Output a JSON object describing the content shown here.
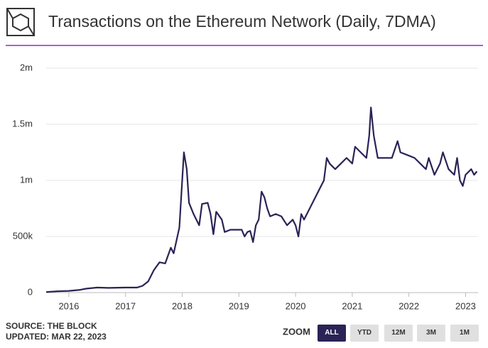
{
  "chart_data": {
    "type": "line",
    "title": "Transactions on the Ethereum Network (Daily, 7DMA)",
    "x": [
      2015.6,
      2015.8,
      2016.0,
      2016.2,
      2016.3,
      2016.5,
      2016.7,
      2017.0,
      2017.2,
      2017.3,
      2017.4,
      2017.5,
      2017.6,
      2017.7,
      2017.8,
      2017.85,
      2017.95,
      2018.0,
      2018.03,
      2018.08,
      2018.12,
      2018.2,
      2018.3,
      2018.35,
      2018.45,
      2018.5,
      2018.55,
      2018.6,
      2018.7,
      2018.75,
      2018.85,
      2018.95,
      2019.05,
      2019.1,
      2019.15,
      2019.2,
      2019.25,
      2019.3,
      2019.35,
      2019.4,
      2019.45,
      2019.5,
      2019.55,
      2019.65,
      2019.75,
      2019.85,
      2019.95,
      2020.0,
      2020.05,
      2020.1,
      2020.15,
      2020.25,
      2020.4,
      2020.5,
      2020.55,
      2020.6,
      2020.7,
      2020.8,
      2020.9,
      2021.0,
      2021.05,
      2021.15,
      2021.25,
      2021.3,
      2021.33,
      2021.38,
      2021.45,
      2021.55,
      2021.7,
      2021.8,
      2021.85,
      2022.0,
      2022.1,
      2022.2,
      2022.3,
      2022.35,
      2022.45,
      2022.55,
      2022.6,
      2022.7,
      2022.8,
      2022.85,
      2022.9,
      2022.95,
      2023.0,
      2023.1,
      2023.15,
      2023.2
    ],
    "values": [
      5000,
      12000,
      15000,
      25000,
      35000,
      45000,
      42000,
      45000,
      45000,
      60000,
      100000,
      200000,
      270000,
      260000,
      400000,
      350000,
      580000,
      1000000,
      1250000,
      1100000,
      800000,
      700000,
      600000,
      790000,
      800000,
      700000,
      520000,
      720000,
      650000,
      540000,
      560000,
      560000,
      560000,
      500000,
      540000,
      550000,
      450000,
      600000,
      650000,
      900000,
      850000,
      750000,
      680000,
      700000,
      680000,
      600000,
      650000,
      600000,
      500000,
      700000,
      650000,
      750000,
      900000,
      1000000,
      1200000,
      1150000,
      1100000,
      1150000,
      1200000,
      1150000,
      1300000,
      1250000,
      1200000,
      1400000,
      1650000,
      1400000,
      1200000,
      1200000,
      1200000,
      1350000,
      1250000,
      1220000,
      1200000,
      1150000,
      1100000,
      1200000,
      1050000,
      1150000,
      1250000,
      1100000,
      1050000,
      1200000,
      1000000,
      950000,
      1050000,
      1100000,
      1050000,
      1080000
    ],
    "color": "#2a2356",
    "xlim": [
      2015.6,
      2023.22
    ],
    "xticks": [
      2016,
      2017,
      2018,
      2019,
      2020,
      2021,
      2022,
      2023
    ],
    "ylim": [
      0,
      2000000
    ],
    "yticks": [
      0,
      {
        "value": 500000,
        "label": "500k"
      },
      {
        "value": 1000000,
        "label": "1m"
      },
      {
        "value": 1500000,
        "label": "1.5m"
      },
      {
        "value": 2000000,
        "label": "2m"
      }
    ],
    "grid": true
  },
  "source": "SOURCE: THE BLOCK",
  "updated": "UPDATED: MAR 22, 2023",
  "zoom": {
    "label": "ZOOM",
    "buttons": [
      "ALL",
      "YTD",
      "12M",
      "3M",
      "1M"
    ]
  }
}
